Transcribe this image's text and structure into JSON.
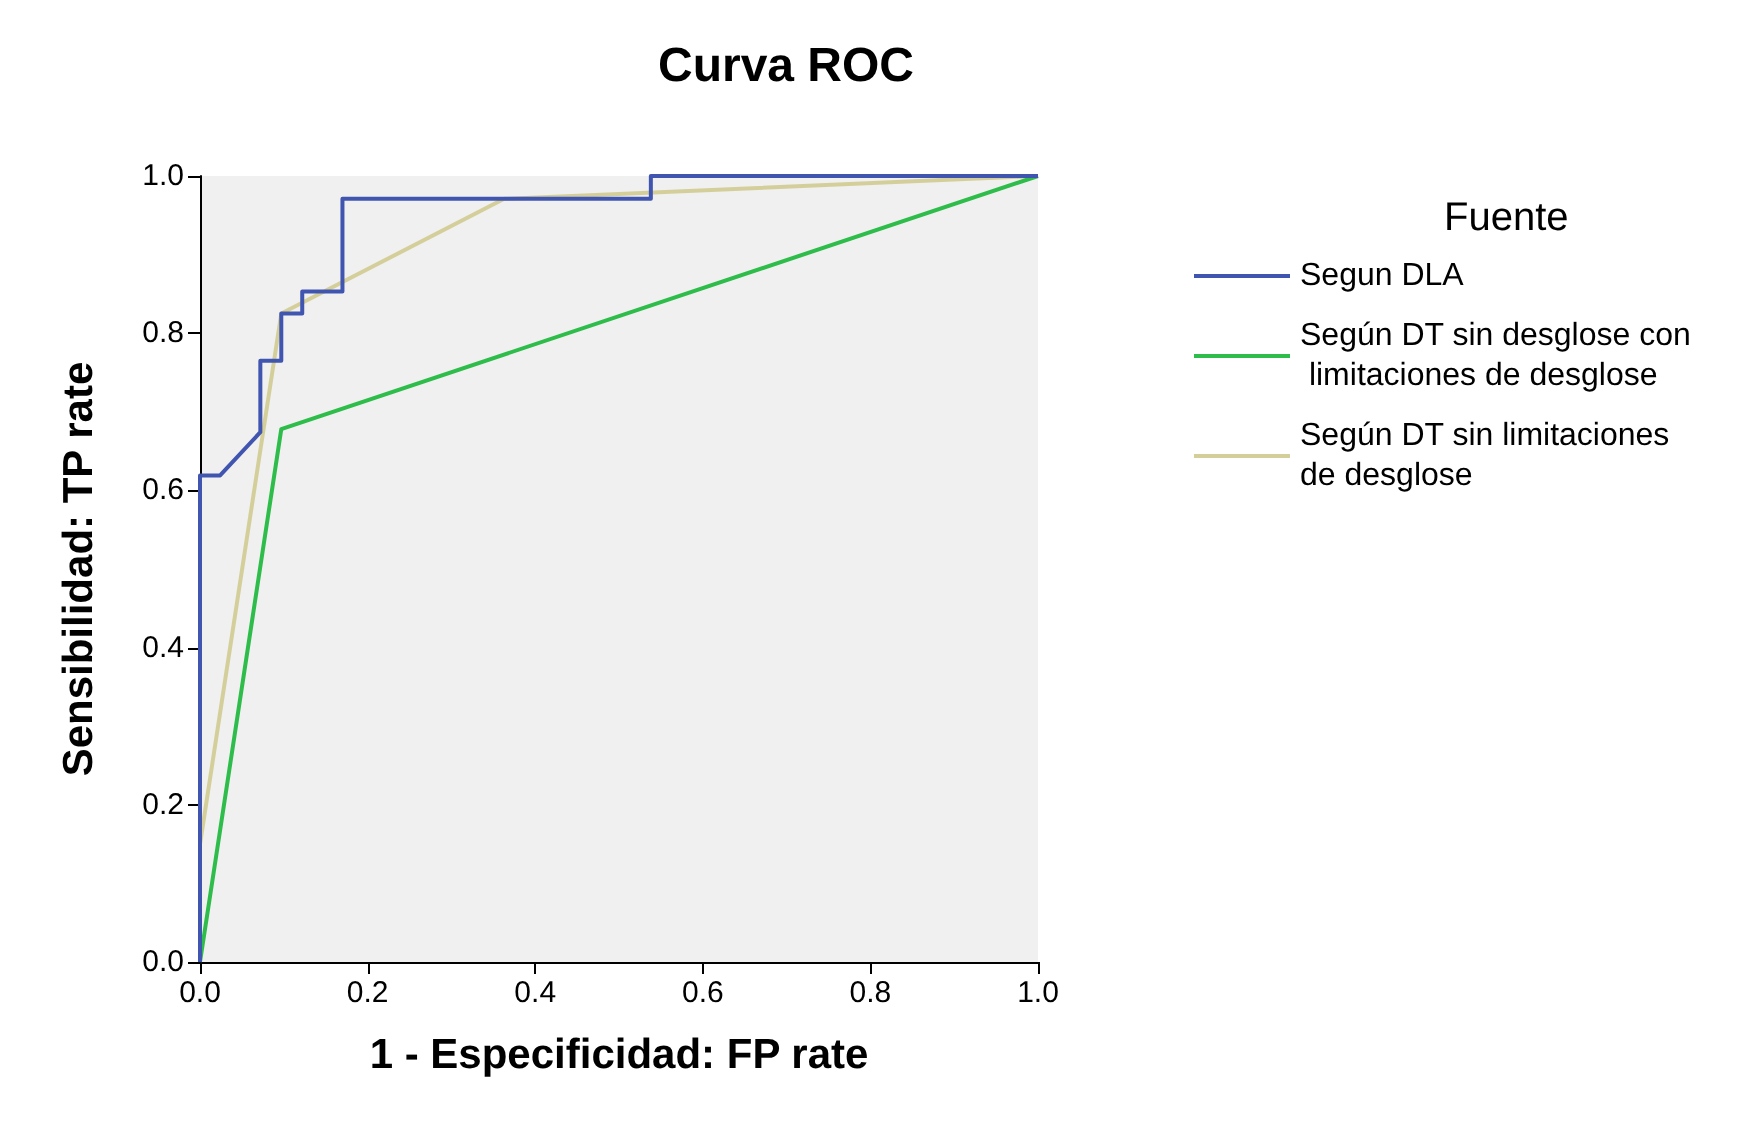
{
  "chart_data": {
    "type": "line",
    "title": "Curva ROC",
    "xlabel": "1 - Especificidad: FP rate",
    "ylabel": "Sensibilidad: TP rate",
    "legend_title": "Fuente",
    "legend": "right",
    "grid": false,
    "marker": "none",
    "line_style": "solid",
    "xlim": [
      0,
      1
    ],
    "ylim": [
      0,
      1
    ],
    "xticks": [
      {
        "value": 0,
        "label": "0.0"
      },
      {
        "value": 0.2,
        "label": "0.2"
      },
      {
        "value": 0.4,
        "label": "0.4"
      },
      {
        "value": 0.6,
        "label": "0.6"
      },
      {
        "value": 0.8,
        "label": "0.8"
      },
      {
        "value": 1,
        "label": "1.0"
      }
    ],
    "yticks": [
      {
        "value": 0,
        "label": "0.0"
      },
      {
        "value": 0.2,
        "label": "0.2"
      },
      {
        "value": 0.4,
        "label": "0.4"
      },
      {
        "value": 0.6,
        "label": "0.6"
      },
      {
        "value": 0.8,
        "label": "0.8"
      },
      {
        "value": 1,
        "label": "1.0"
      }
    ],
    "series": [
      {
        "name": "Segun DLA",
        "color": "#4055b0",
        "x": [
          0,
          0,
          0.024,
          0.072,
          0.072,
          0.097,
          0.097,
          0.122,
          0.122,
          0.17,
          0.17,
          0.538,
          0.538,
          1
        ],
        "values": [
          0,
          0.619,
          0.619,
          0.674,
          0.765,
          0.765,
          0.825,
          0.825,
          0.853,
          0.853,
          0.971,
          0.971,
          1,
          1
        ]
      },
      {
        "name": "Según DT sin desglose con limitaciones de desglose",
        "color": "#2ebd4a",
        "x": [
          0,
          0.097,
          1
        ],
        "values": [
          0,
          0.678,
          1
        ]
      },
      {
        "name": "Según DT sin limitaciones de desglose",
        "color": "#d4cf9a",
        "x": [
          0,
          0,
          0.097,
          0.363,
          1
        ],
        "values": [
          0,
          0.15,
          0.825,
          0.971,
          1
        ]
      }
    ]
  }
}
